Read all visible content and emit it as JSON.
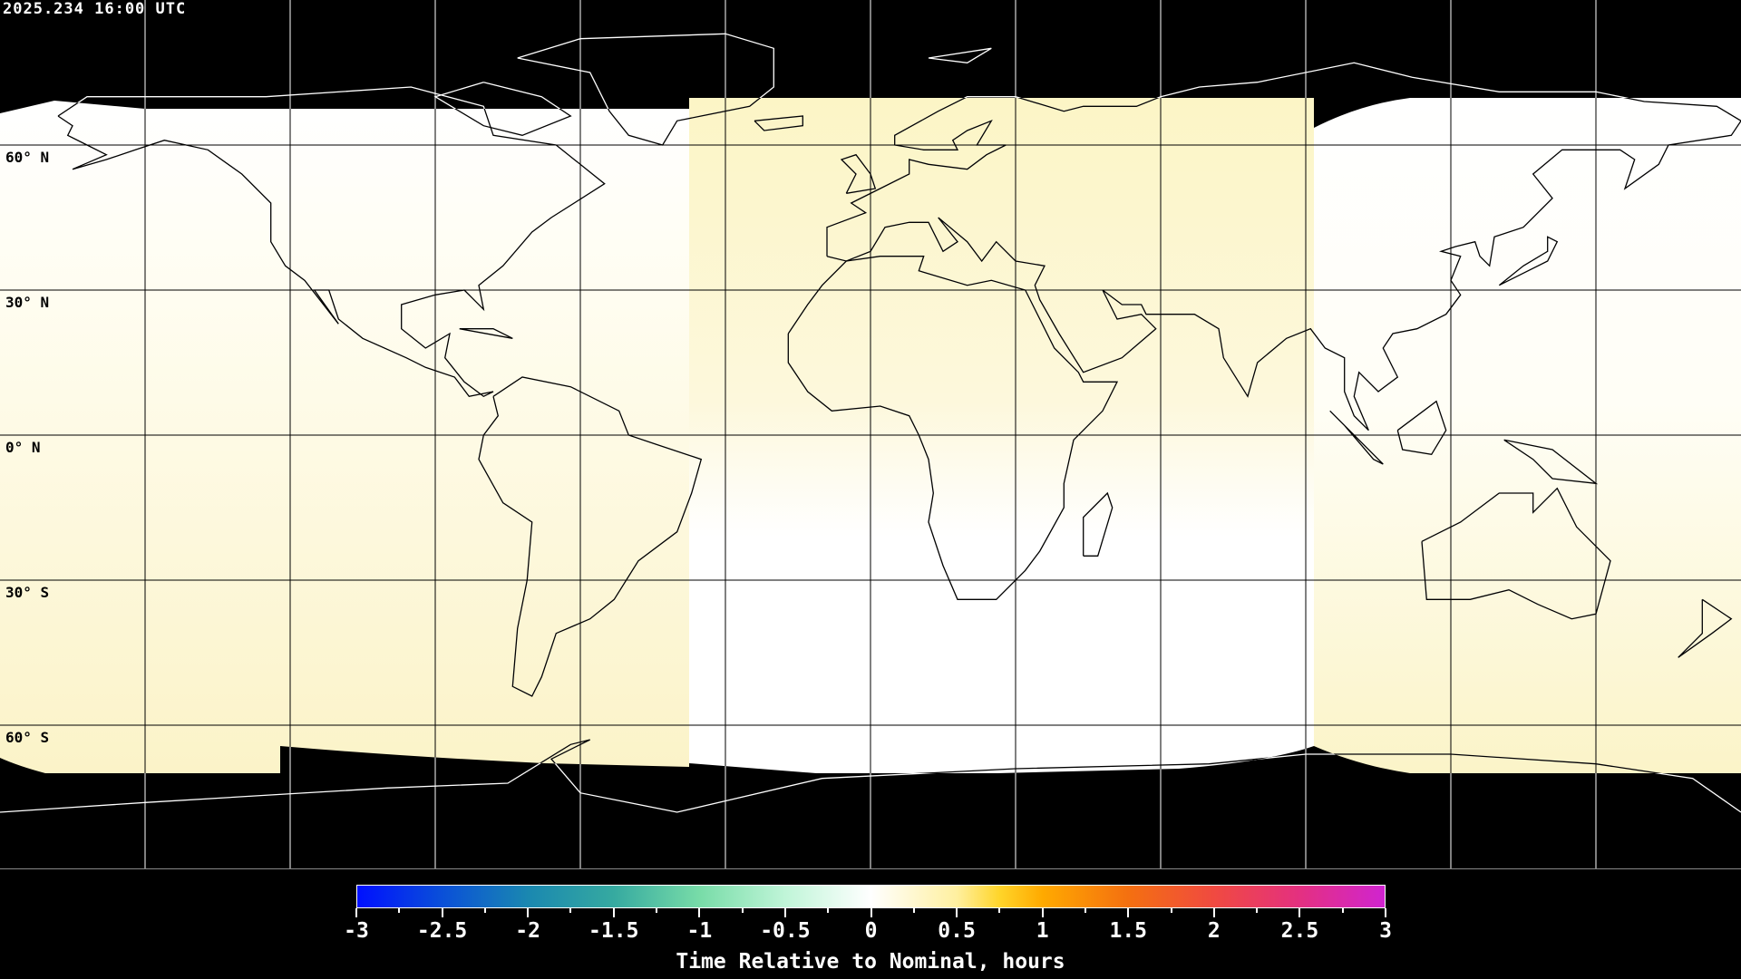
{
  "timestamp": "2025.234 16:00 UTC",
  "lat_labels": [
    "60° N",
    "30° N",
    "0° N",
    "30° S",
    "60° S"
  ],
  "projection": "equirectangular",
  "grid_spacing_deg": {
    "lon": 30,
    "lat": 30
  },
  "colors": {
    "background": "#000000",
    "coastline_lit": "#000000",
    "coastline_dark": "#ffffff",
    "swath_white": "#ffffff",
    "swath_yellow": "#fbf5cc"
  },
  "colorbar": {
    "title": "Time Relative to Nominal, hours",
    "min": -3,
    "max": 3,
    "tick_labels": [
      "-3",
      "-2.5",
      "-2",
      "-1.5",
      "-1",
      "-0.5",
      "0",
      "0.5",
      "1",
      "1.5",
      "2",
      "2.5",
      "3"
    ],
    "stops": [
      {
        "v": -3,
        "c": "#0010ff"
      },
      {
        "v": -2.5,
        "c": "#0a50d8"
      },
      {
        "v": -2,
        "c": "#1a88b0"
      },
      {
        "v": -1.5,
        "c": "#36aaa0"
      },
      {
        "v": -1,
        "c": "#78dca8"
      },
      {
        "v": -0.5,
        "c": "#c0f5d8"
      },
      {
        "v": 0,
        "c": "#ffffff"
      },
      {
        "v": 0.5,
        "c": "#fff0a0"
      },
      {
        "v": 0.75,
        "c": "#ffd52a"
      },
      {
        "v": 1,
        "c": "#ffaa00"
      },
      {
        "v": 1.5,
        "c": "#f47010"
      },
      {
        "v": 2,
        "c": "#f04a40"
      },
      {
        "v": 2.5,
        "c": "#e43080"
      },
      {
        "v": 3,
        "c": "#d024d0"
      }
    ]
  },
  "coastlines": [
    [
      [
        -168,
        66
      ],
      [
        -162,
        70
      ],
      [
        -140,
        70
      ],
      [
        -125,
        70
      ],
      [
        -95,
        72
      ],
      [
        -80,
        68
      ],
      [
        -78,
        62
      ],
      [
        -65,
        60
      ],
      [
        -55,
        52
      ],
      [
        -66,
        45
      ],
      [
        -70,
        42
      ],
      [
        -76,
        35
      ],
      [
        -81,
        31
      ],
      [
        -80,
        26
      ],
      [
        -82,
        28
      ],
      [
        -84,
        30
      ],
      [
        -90,
        29
      ],
      [
        -97,
        27
      ],
      [
        -97,
        22
      ],
      [
        -92,
        18
      ],
      [
        -87,
        21
      ],
      [
        -88,
        16
      ],
      [
        -84,
        11
      ],
      [
        -80,
        8
      ],
      [
        -78,
        9
      ],
      [
        -83,
        8
      ],
      [
        -86,
        12
      ],
      [
        -92,
        14
      ],
      [
        -96,
        16
      ],
      [
        -105,
        20
      ],
      [
        -110,
        24
      ],
      [
        -112,
        30
      ],
      [
        -115,
        30
      ],
      [
        -110,
        23
      ],
      [
        -117,
        32
      ],
      [
        -121,
        35
      ],
      [
        -124,
        40
      ],
      [
        -124,
        48
      ],
      [
        -130,
        54
      ],
      [
        -137,
        59
      ],
      [
        -146,
        61
      ],
      [
        -152,
        59
      ],
      [
        -158,
        57
      ],
      [
        -165,
        55
      ],
      [
        -158,
        58
      ],
      [
        -162,
        60
      ],
      [
        -166,
        62
      ],
      [
        -165,
        64
      ],
      [
        -168,
        66
      ]
    ],
    [
      [
        -78,
        8
      ],
      [
        -72,
        12
      ],
      [
        -62,
        10
      ],
      [
        -52,
        5
      ],
      [
        -50,
        0
      ],
      [
        -44,
        -2
      ],
      [
        -35,
        -5
      ],
      [
        -37,
        -12
      ],
      [
        -40,
        -20
      ],
      [
        -48,
        -26
      ],
      [
        -53,
        -34
      ],
      [
        -58,
        -38
      ],
      [
        -65,
        -41
      ],
      [
        -68,
        -50
      ],
      [
        -70,
        -54
      ],
      [
        -74,
        -52
      ],
      [
        -73,
        -40
      ],
      [
        -71,
        -30
      ],
      [
        -70,
        -18
      ],
      [
        -76,
        -14
      ],
      [
        -81,
        -5
      ],
      [
        -80,
        0
      ],
      [
        -77,
        4
      ],
      [
        -78,
        8
      ]
    ],
    [
      [
        -73,
        78
      ],
      [
        -60,
        82
      ],
      [
        -30,
        83
      ],
      [
        -20,
        80
      ],
      [
        -20,
        72
      ],
      [
        -25,
        68
      ],
      [
        -40,
        65
      ],
      [
        -43,
        60
      ],
      [
        -50,
        62
      ],
      [
        -54,
        67
      ],
      [
        -58,
        75
      ],
      [
        -73,
        78
      ]
    ],
    [
      [
        -80,
        73
      ],
      [
        -68,
        70
      ],
      [
        -62,
        66
      ],
      [
        -72,
        62
      ],
      [
        -80,
        64
      ],
      [
        -90,
        70
      ],
      [
        -80,
        73
      ]
    ],
    [
      [
        -24,
        65
      ],
      [
        -14,
        66
      ],
      [
        -14,
        64
      ],
      [
        -22,
        63
      ],
      [
        -24,
        65
      ]
    ],
    [
      [
        -85,
        22
      ],
      [
        -74,
        20
      ],
      [
        -78,
        22
      ],
      [
        -85,
        22
      ]
    ],
    [
      [
        -5,
        50
      ],
      [
        1,
        51
      ],
      [
        0,
        54
      ],
      [
        -3,
        58
      ],
      [
        -6,
        57
      ],
      [
        -3,
        54
      ],
      [
        -5,
        50
      ]
    ],
    [
      [
        -9,
        37
      ],
      [
        -9,
        43
      ],
      [
        -1,
        46
      ],
      [
        -4,
        48
      ],
      [
        2,
        51
      ],
      [
        8,
        54
      ],
      [
        8,
        57
      ],
      [
        12,
        56
      ],
      [
        20,
        55
      ],
      [
        24,
        58
      ],
      [
        28,
        60
      ],
      [
        22,
        60
      ],
      [
        25,
        65
      ],
      [
        20,
        63
      ],
      [
        17,
        61
      ],
      [
        18,
        59
      ],
      [
        11,
        59
      ],
      [
        5,
        60
      ],
      [
        5,
        62
      ],
      [
        14,
        67
      ],
      [
        20,
        70
      ],
      [
        30,
        70
      ],
      [
        40,
        67
      ],
      [
        44,
        68
      ],
      [
        55,
        68
      ],
      [
        60,
        70
      ],
      [
        68,
        72
      ],
      [
        80,
        73
      ],
      [
        100,
        77
      ],
      [
        112,
        74
      ],
      [
        130,
        71
      ],
      [
        150,
        71
      ],
      [
        160,
        69
      ],
      [
        175,
        68
      ],
      [
        180,
        65
      ],
      [
        178,
        62
      ],
      [
        165,
        60
      ],
      [
        163,
        56
      ],
      [
        156,
        51
      ],
      [
        158,
        57
      ],
      [
        155,
        59
      ],
      [
        143,
        59
      ],
      [
        137,
        54
      ],
      [
        141,
        49
      ],
      [
        135,
        43
      ],
      [
        129,
        41
      ],
      [
        128,
        35
      ],
      [
        126,
        37
      ],
      [
        125,
        40
      ],
      [
        121,
        39
      ],
      [
        118,
        38
      ],
      [
        122,
        37
      ],
      [
        120,
        32
      ],
      [
        122,
        29
      ],
      [
        119,
        25
      ],
      [
        113,
        22
      ],
      [
        108,
        21
      ],
      [
        106,
        18
      ],
      [
        109,
        12
      ],
      [
        105,
        9
      ],
      [
        101,
        13
      ],
      [
        100,
        8
      ],
      [
        103,
        1
      ],
      [
        100,
        4
      ],
      [
        98,
        9
      ],
      [
        98,
        16
      ],
      [
        94,
        18
      ],
      [
        91,
        22
      ],
      [
        86,
        20
      ],
      [
        80,
        15
      ],
      [
        78,
        8
      ],
      [
        73,
        16
      ],
      [
        72,
        22
      ],
      [
        67,
        25
      ],
      [
        57,
        25
      ],
      [
        56,
        27
      ],
      [
        52,
        27
      ],
      [
        48,
        30
      ],
      [
        51,
        24
      ],
      [
        56,
        25
      ],
      [
        59,
        22
      ],
      [
        52,
        16
      ],
      [
        44,
        13
      ],
      [
        39,
        21
      ],
      [
        35,
        28
      ],
      [
        34,
        31
      ],
      [
        36,
        35
      ],
      [
        30,
        36
      ],
      [
        26,
        40
      ],
      [
        23,
        36
      ],
      [
        20,
        40
      ],
      [
        14,
        45
      ],
      [
        18,
        40
      ],
      [
        15,
        38
      ],
      [
        12,
        44
      ],
      [
        8,
        44
      ],
      [
        3,
        43
      ],
      [
        0,
        38
      ],
      [
        -5,
        36
      ],
      [
        -9,
        37
      ]
    ],
    [
      [
        -17,
        21
      ],
      [
        -17,
        15
      ],
      [
        -13,
        9
      ],
      [
        -8,
        5
      ],
      [
        2,
        6
      ],
      [
        8,
        4
      ],
      [
        10,
        0
      ],
      [
        12,
        -5
      ],
      [
        13,
        -12
      ],
      [
        12,
        -18
      ],
      [
        15,
        -27
      ],
      [
        18,
        -34
      ],
      [
        26,
        -34
      ],
      [
        32,
        -28
      ],
      [
        35,
        -24
      ],
      [
        40,
        -15
      ],
      [
        40,
        -10
      ],
      [
        42,
        -1
      ],
      [
        48,
        5
      ],
      [
        51,
        11
      ],
      [
        44,
        11
      ],
      [
        43,
        13
      ],
      [
        38,
        18
      ],
      [
        32,
        30
      ],
      [
        25,
        32
      ],
      [
        20,
        31
      ],
      [
        10,
        34
      ],
      [
        11,
        37
      ],
      [
        2,
        37
      ],
      [
        -5,
        36
      ],
      [
        -10,
        31
      ],
      [
        -13,
        27
      ],
      [
        -17,
        21
      ]
    ],
    [
      [
        44,
        -25
      ],
      [
        47,
        -25
      ],
      [
        50,
        -15
      ],
      [
        49,
        -12
      ],
      [
        44,
        -17
      ],
      [
        44,
        -25
      ]
    ],
    [
      [
        114,
        -22
      ],
      [
        122,
        -18
      ],
      [
        130,
        -12
      ],
      [
        137,
        -12
      ],
      [
        137,
        -16
      ],
      [
        142,
        -11
      ],
      [
        146,
        -19
      ],
      [
        153,
        -26
      ],
      [
        150,
        -37
      ],
      [
        145,
        -38
      ],
      [
        138,
        -35
      ],
      [
        132,
        -32
      ],
      [
        124,
        -34
      ],
      [
        115,
        -34
      ],
      [
        114,
        -22
      ]
    ],
    [
      [
        130,
        31
      ],
      [
        136,
        34
      ],
      [
        140,
        36
      ],
      [
        142,
        40
      ],
      [
        140,
        41
      ],
      [
        140,
        38
      ],
      [
        135,
        35
      ],
      [
        130,
        31
      ]
    ],
    [
      [
        172,
        -34
      ],
      [
        178,
        -38
      ],
      [
        174,
        -41
      ],
      [
        167,
        -46
      ],
      [
        172,
        -41
      ],
      [
        172,
        -34
      ]
    ],
    [
      [
        109,
        1
      ],
      [
        117,
        7
      ],
      [
        119,
        1
      ],
      [
        116,
        -4
      ],
      [
        110,
        -3
      ],
      [
        109,
        1
      ]
    ],
    [
      [
        95,
        5
      ],
      [
        106,
        -6
      ],
      [
        104,
        -5
      ],
      [
        98,
        2
      ],
      [
        95,
        5
      ]
    ],
    [
      [
        131,
        -1
      ],
      [
        141,
        -3
      ],
      [
        150,
        -10
      ],
      [
        141,
        -9
      ],
      [
        137,
        -5
      ],
      [
        131,
        -1
      ]
    ],
    [
      [
        12,
        78
      ],
      [
        25,
        80
      ],
      [
        20,
        77
      ],
      [
        12,
        78
      ]
    ],
    [
      [
        -180,
        -78
      ],
      [
        -150,
        -76
      ],
      [
        -100,
        -73
      ],
      [
        -75,
        -72
      ],
      [
        -62,
        -64
      ],
      [
        -58,
        -63
      ],
      [
        -66,
        -67
      ],
      [
        -60,
        -74
      ],
      [
        -40,
        -78
      ],
      [
        -10,
        -71
      ],
      [
        30,
        -69
      ],
      [
        70,
        -68
      ],
      [
        90,
        -66
      ],
      [
        120,
        -66
      ],
      [
        150,
        -68
      ],
      [
        170,
        -71
      ],
      [
        180,
        -78
      ]
    ]
  ]
}
